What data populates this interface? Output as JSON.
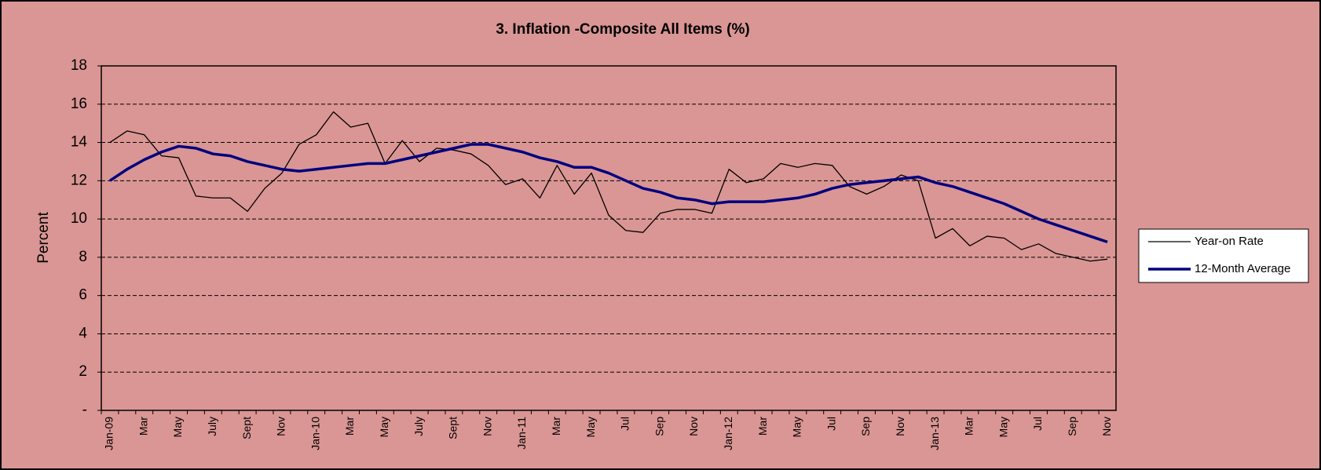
{
  "chart_data": {
    "type": "line",
    "title": "3. Inflation -Composite All Items (%)",
    "y_label": "Percent",
    "categories": [
      "Jan-09",
      null,
      "Mar",
      null,
      "May",
      null,
      "July",
      null,
      "Sept",
      null,
      "Nov",
      null,
      "Jan-10",
      null,
      "Mar",
      null,
      "May",
      null,
      "July",
      null,
      "Sept",
      null,
      "Nov",
      null,
      "Jan-11",
      null,
      "Mar",
      null,
      "May",
      null,
      "Jul",
      null,
      "Sep",
      null,
      "Nov",
      null,
      "Jan-12",
      null,
      "Mar",
      null,
      "May",
      null,
      "Jul",
      null,
      "Sep",
      null,
      "Nov",
      null,
      "Jan-13",
      null,
      "Mar",
      null,
      "May",
      null,
      "Jul",
      null,
      "Sep",
      null,
      "Nov"
    ],
    "series": [
      {
        "name": "Year-on Rate",
        "color": "#000000",
        "width": 1.3,
        "values": [
          14.0,
          14.6,
          14.4,
          13.3,
          13.2,
          11.2,
          11.1,
          11.1,
          10.4,
          11.6,
          12.4,
          13.9,
          14.4,
          15.6,
          14.8,
          15.0,
          12.9,
          14.1,
          13.0,
          13.7,
          13.6,
          13.4,
          12.8,
          11.8,
          12.1,
          11.1,
          12.8,
          11.3,
          12.4,
          10.2,
          9.4,
          9.3,
          10.3,
          10.5,
          10.5,
          10.3,
          12.6,
          11.9,
          12.1,
          12.9,
          12.7,
          12.9,
          12.8,
          11.7,
          11.3,
          11.7,
          12.3,
          12.0,
          9.0,
          9.5,
          8.6,
          9.1,
          9.0,
          8.4,
          8.7,
          8.2,
          8.0,
          7.8,
          7.9
        ]
      },
      {
        "name": "12-Month Average",
        "color": "#000080",
        "width": 3.5,
        "values": [
          12.0,
          12.6,
          13.1,
          13.5,
          13.8,
          13.7,
          13.4,
          13.3,
          13.0,
          12.8,
          12.6,
          12.5,
          12.6,
          12.7,
          12.8,
          12.9,
          12.9,
          13.1,
          13.3,
          13.5,
          13.7,
          13.9,
          13.9,
          13.7,
          13.5,
          13.2,
          13.0,
          12.7,
          12.7,
          12.4,
          12.0,
          11.6,
          11.4,
          11.1,
          11.0,
          10.8,
          10.9,
          10.9,
          10.9,
          11.0,
          11.1,
          11.3,
          11.6,
          11.8,
          11.9,
          12.0,
          12.1,
          12.2,
          11.9,
          11.7,
          11.4,
          11.1,
          10.8,
          10.4,
          10.0,
          9.7,
          9.4,
          9.1,
          8.8
        ]
      }
    ],
    "ylim": [
      0,
      18
    ],
    "yticks": [
      {
        "value": 0,
        "label": "-"
      },
      2,
      4,
      6,
      8,
      10,
      12,
      14,
      16,
      18
    ],
    "grid": true,
    "legend": "right"
  }
}
